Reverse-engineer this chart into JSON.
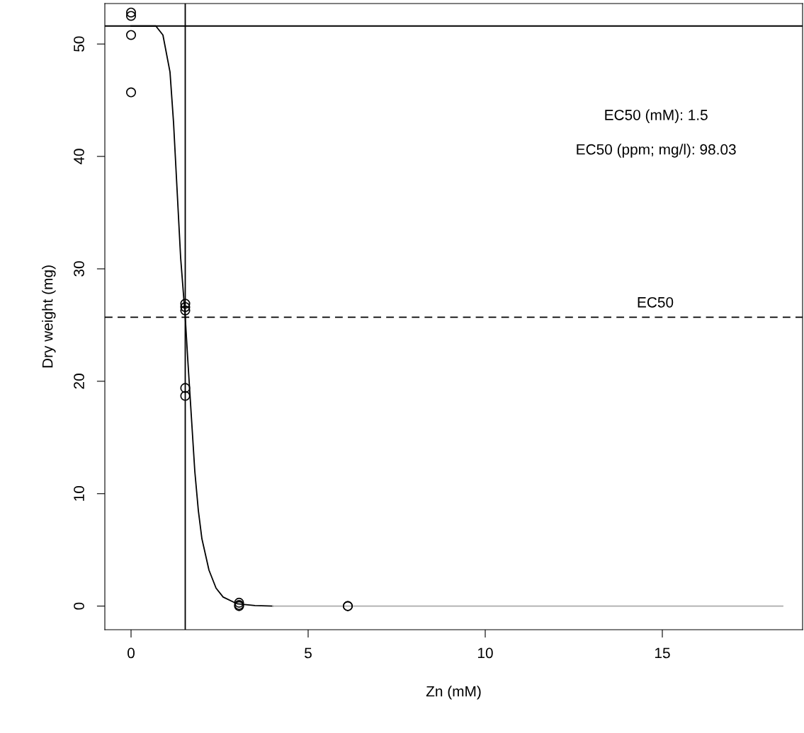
{
  "chart_data": {
    "type": "scatter",
    "xlabel": "Zn (mM)",
    "ylabel": "Dry weight (mg)",
    "xlim": [
      -0.74,
      18.96
    ],
    "ylim": [
      -2.1,
      53.6
    ],
    "xticks": [
      0,
      5,
      10,
      15
    ],
    "yticks": [
      0,
      10,
      20,
      30,
      40,
      50
    ],
    "grid": false,
    "legend": false,
    "series": [
      {
        "type": "line",
        "color": "#000000",
        "marker": "none",
        "x": [
          0,
          0.7,
          0.9,
          1.1,
          1.2,
          1.3,
          1.4,
          1.53,
          1.6,
          1.7,
          1.8,
          1.9,
          2.0,
          2.2,
          2.4,
          2.6,
          3.0,
          3.5,
          4.0
        ],
        "values": [
          51.6,
          51.6,
          50.8,
          47.5,
          43,
          37,
          31,
          25.7,
          22,
          17,
          12,
          8.5,
          6,
          3.2,
          1.6,
          0.8,
          0.2,
          0.05,
          0
        ]
      },
      {
        "type": "line",
        "color": "#aaaaaa",
        "marker": "none",
        "x": [
          4.0,
          18.4
        ],
        "values": [
          0,
          0
        ]
      },
      {
        "color": "#000000",
        "marker": "circle",
        "x": [
          0,
          0,
          0,
          0,
          1.53,
          1.53,
          1.53,
          1.53,
          1.53,
          3.05,
          3.05,
          3.05,
          6.12,
          6.12
        ],
        "values": [
          52.8,
          52.5,
          50.8,
          45.7,
          26.9,
          26.6,
          26.3,
          19.4,
          18.7,
          0.3,
          0.1,
          0,
          0,
          0
        ]
      }
    ],
    "ref_lines": [
      {
        "axis": "y",
        "value": 51.6,
        "color": "#000000",
        "line_style": "solid"
      },
      {
        "axis": "x",
        "value": 1.53,
        "color": "#000000",
        "line_style": "solid"
      },
      {
        "axis": "y",
        "value": 25.7,
        "color": "#000000",
        "line_style": "dashed"
      }
    ],
    "annotations": [
      {
        "text": "EC50",
        "x": 14.8,
        "y": 25.7
      },
      "EC50 (mM): 1.5",
      "EC50 (ppm; mg/l): 98.03"
    ]
  }
}
